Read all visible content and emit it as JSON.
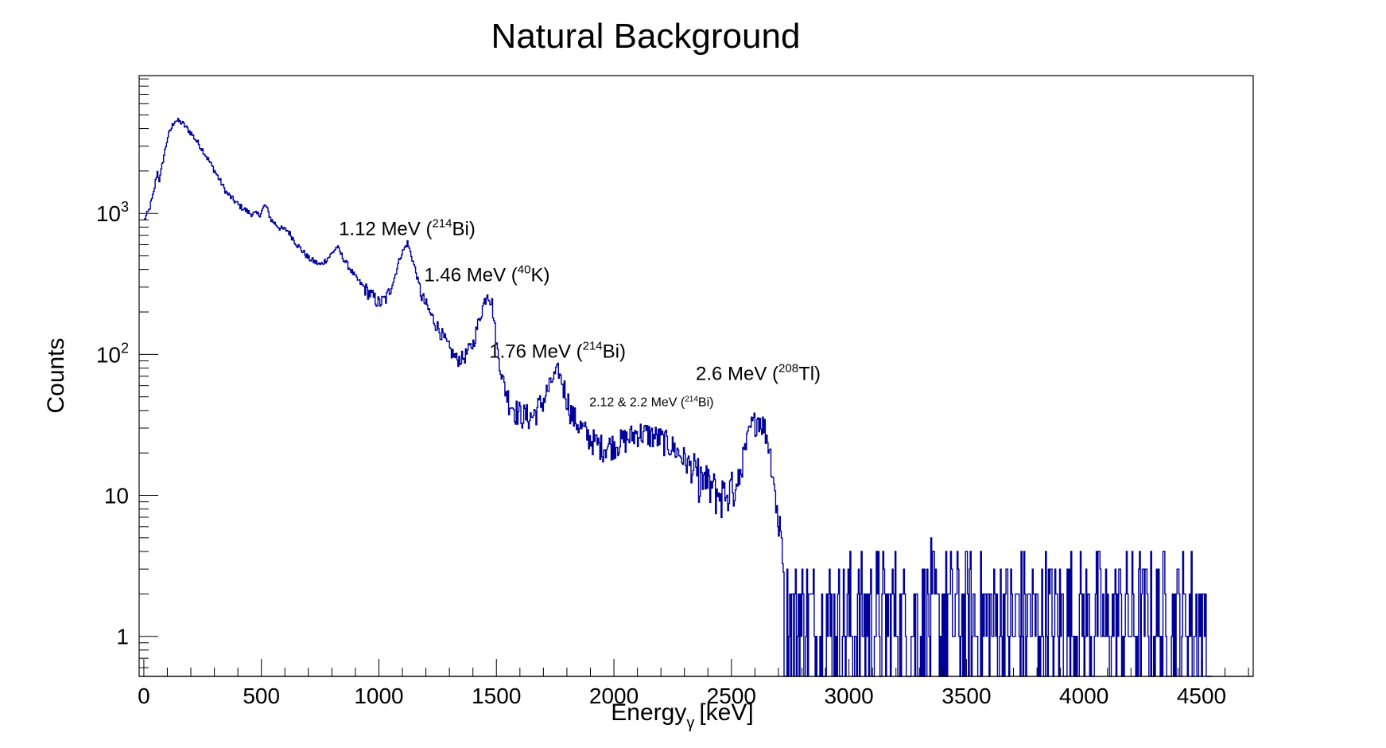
{
  "chart_data": {
    "type": "line",
    "title": "Natural Background",
    "xlabel": {
      "main": "Energy",
      "sub": "γ",
      "unit": "[keV]"
    },
    "ylabel": "Counts",
    "xlim": [
      -20,
      4720
    ],
    "ylim": [
      0.52,
      9500
    ],
    "yscale": "log",
    "line_color": "#000099",
    "x_ticks": [
      {
        "value": 0,
        "label": "0"
      },
      {
        "value": 500,
        "label": "500"
      },
      {
        "value": 1000,
        "label": "1000"
      },
      {
        "value": 1500,
        "label": "1500"
      },
      {
        "value": 2000,
        "label": "2000"
      },
      {
        "value": 2500,
        "label": "2500"
      },
      {
        "value": 3000,
        "label": "3000"
      },
      {
        "value": 3500,
        "label": "3500"
      },
      {
        "value": 4000,
        "label": "4000"
      },
      {
        "value": 4500,
        "label": "4500"
      }
    ],
    "y_ticks": [
      {
        "value": 1,
        "base": "1",
        "exp": ""
      },
      {
        "value": 10,
        "base": "10",
        "exp": ""
      },
      {
        "value": 100,
        "base": "10",
        "exp": "2"
      },
      {
        "value": 1000,
        "base": "10",
        "exp": "3"
      }
    ],
    "annotations": [
      {
        "x": 1120,
        "y": 700,
        "text": "1.12 MeV (",
        "sup": "214",
        "after": "Bi)",
        "size": "normal"
      },
      {
        "x": 1460,
        "y": 330,
        "text": "1.46 MeV (",
        "sup": "40",
        "after": "K)",
        "size": "normal"
      },
      {
        "x": 1760,
        "y": 95,
        "text": "1.76 MeV (",
        "sup": "214",
        "after": "Bi)",
        "size": "normal"
      },
      {
        "x": 2160,
        "y": 43,
        "text": "2.12 & 2.2 MeV (",
        "sup": "214",
        "after": "Bi)",
        "size": "small"
      },
      {
        "x": 2614,
        "y": 66,
        "text": "2.6 MeV (",
        "sup": "208",
        "after": "Tl)",
        "size": "normal"
      }
    ],
    "spectrum_key_points": [
      [
        0,
        900
      ],
      [
        20,
        1050
      ],
      [
        40,
        1400
      ],
      [
        55,
        2000
      ],
      [
        65,
        1700
      ],
      [
        80,
        2400
      ],
      [
        100,
        3500
      ],
      [
        130,
        4600
      ],
      [
        160,
        4400
      ],
      [
        200,
        3700
      ],
      [
        250,
        2800
      ],
      [
        300,
        2000
      ],
      [
        350,
        1400
      ],
      [
        400,
        1150
      ],
      [
        450,
        1000
      ],
      [
        490,
        980
      ],
      [
        515,
        1150
      ],
      [
        540,
        900
      ],
      [
        580,
        780
      ],
      [
        610,
        760
      ],
      [
        650,
        600
      ],
      [
        700,
        480
      ],
      [
        750,
        430
      ],
      [
        790,
        500
      ],
      [
        820,
        580
      ],
      [
        850,
        470
      ],
      [
        900,
        350
      ],
      [
        950,
        280
      ],
      [
        1000,
        230
      ],
      [
        1030,
        250
      ],
      [
        1060,
        330
      ],
      [
        1090,
        500
      ],
      [
        1120,
        620
      ],
      [
        1150,
        420
      ],
      [
        1180,
        260
      ],
      [
        1220,
        190
      ],
      [
        1260,
        145
      ],
      [
        1300,
        108
      ],
      [
        1330,
        92
      ],
      [
        1360,
        95
      ],
      [
        1400,
        120
      ],
      [
        1430,
        190
      ],
      [
        1460,
        280
      ],
      [
        1480,
        230
      ],
      [
        1500,
        115
      ],
      [
        1520,
        72
      ],
      [
        1550,
        48
      ],
      [
        1580,
        40
      ],
      [
        1610,
        37
      ],
      [
        1650,
        36
      ],
      [
        1700,
        48
      ],
      [
        1740,
        68
      ],
      [
        1760,
        78
      ],
      [
        1790,
        55
      ],
      [
        1820,
        37
      ],
      [
        1860,
        30
      ],
      [
        1900,
        25
      ],
      [
        1950,
        22
      ],
      [
        2000,
        23
      ],
      [
        2050,
        25
      ],
      [
        2100,
        28
      ],
      [
        2150,
        27
      ],
      [
        2200,
        25
      ],
      [
        2250,
        22
      ],
      [
        2300,
        18
      ],
      [
        2350,
        14
      ],
      [
        2400,
        12
      ],
      [
        2450,
        10
      ],
      [
        2500,
        11
      ],
      [
        2540,
        16
      ],
      [
        2580,
        30
      ],
      [
        2614,
        36
      ],
      [
        2640,
        30
      ],
      [
        2660,
        22
      ],
      [
        2680,
        12
      ],
      [
        2700,
        6
      ],
      [
        2750,
        2.5
      ],
      [
        3000,
        2.5
      ],
      [
        3500,
        2.2
      ],
      [
        4000,
        2
      ],
      [
        4500,
        1.8
      ],
      [
        4520,
        1.7
      ],
      [
        4540,
        0
      ]
    ]
  }
}
